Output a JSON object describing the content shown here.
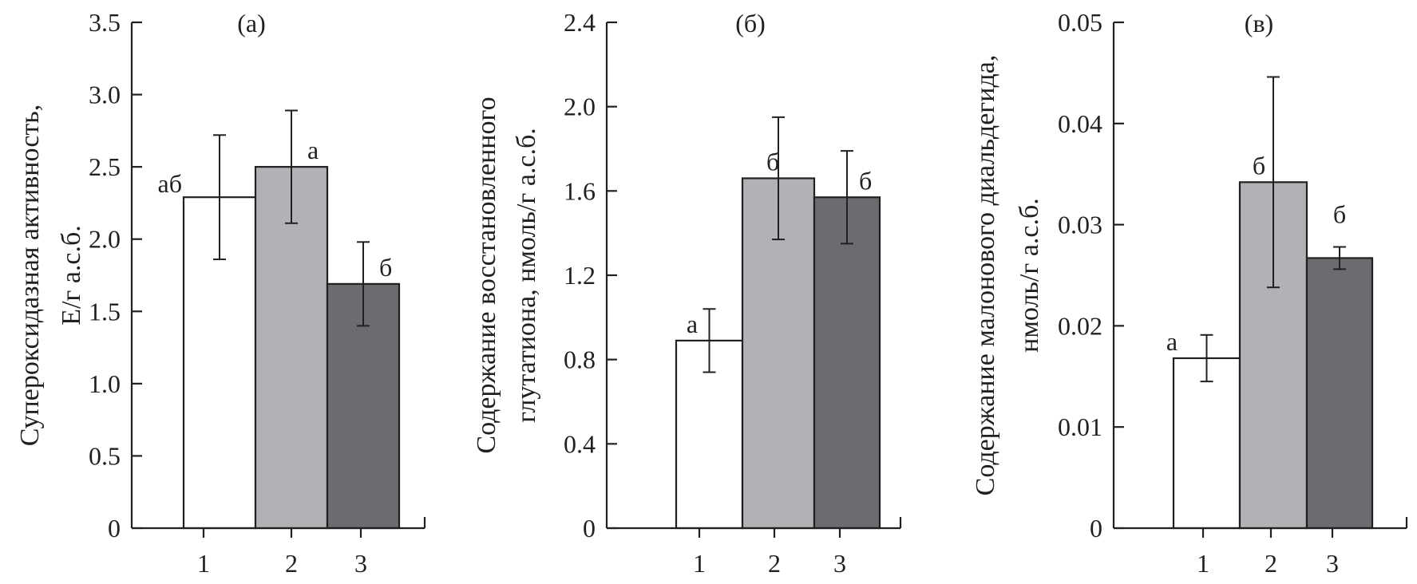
{
  "chart_data": [
    {
      "type": "bar",
      "title": "(а)",
      "ylabel": [
        "Супероксидазная активность,",
        "Е/г а.с.б."
      ],
      "xlabel": "",
      "ylim": [
        0,
        3.5
      ],
      "yticks": [
        "0",
        "0.5",
        "1.0",
        "1.5",
        "2.0",
        "2.5",
        "3.0",
        "3.5"
      ],
      "categories": [
        "1",
        "2",
        "3"
      ],
      "values": [
        2.29,
        2.5,
        1.69
      ],
      "errors": [
        0.43,
        0.39,
        0.29
      ],
      "letters": [
        "аб",
        "а",
        "б"
      ],
      "colors": [
        "#ffffff",
        "#b1b2b5",
        "#6b6c70"
      ]
    },
    {
      "type": "bar",
      "title": "(б)",
      "ylabel": [
        "Содержание восстановленного",
        "глутатиона, нмоль/г а.с.б."
      ],
      "xlabel": "",
      "ylim": [
        0,
        2.4
      ],
      "yticks": [
        "0",
        "0.4",
        "0.8",
        "1.2",
        "1.6",
        "2.0",
        "2.4"
      ],
      "categories": [
        "1",
        "2",
        "3"
      ],
      "values": [
        0.89,
        1.66,
        1.57
      ],
      "errors": [
        0.15,
        0.29,
        0.22
      ],
      "letters": [
        "а",
        "б",
        "б"
      ],
      "colors": [
        "#ffffff",
        "#b1b2b5",
        "#6b6c70"
      ]
    },
    {
      "type": "bar",
      "title": "(в)",
      "ylabel": [
        "Содержание малонового диальдегида,",
        "нмоль/г а.с.б."
      ],
      "xlabel": "",
      "ylim": [
        0,
        0.05
      ],
      "yticks": [
        "0",
        "0.01",
        "0.02",
        "0.03",
        "0.04",
        "0.05"
      ],
      "categories": [
        "1",
        "2",
        "3"
      ],
      "values": [
        0.0168,
        0.0342,
        0.0267
      ],
      "errors": [
        0.0023,
        0.0104,
        0.0011
      ],
      "letters": [
        "а",
        "б",
        "б"
      ],
      "colors": [
        "#ffffff",
        "#b1b2b5",
        "#6b6c70"
      ]
    }
  ]
}
